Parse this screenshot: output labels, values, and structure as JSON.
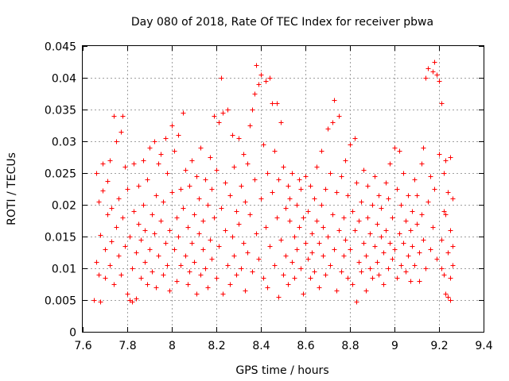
{
  "chart_data": {
    "type": "scatter",
    "title": "Day 080 of 2018, Rate Of TEC Index for receiver pbwa",
    "xlabel": "GPS time / hours",
    "ylabel": "ROTI / TECUs",
    "xlim": [
      7.6,
      9.4
    ],
    "ylim": [
      0,
      0.045
    ],
    "grid": true,
    "marker": "+",
    "color": "#ff0000",
    "x_ticks": [
      7.6,
      7.8,
      8.0,
      8.2,
      8.4,
      8.6,
      8.8,
      9.0,
      9.2,
      9.4
    ],
    "x_tick_labels": [
      "7.6",
      "7.8",
      "8",
      "8.2",
      "8.4",
      "8.6",
      "8.8",
      "9",
      "9.2",
      "9.4"
    ],
    "y_ticks": [
      0,
      0.005,
      0.01,
      0.015,
      0.02,
      0.025,
      0.03,
      0.035,
      0.04,
      0.045
    ],
    "y_tick_labels": [
      "0",
      "0.005",
      "0.01",
      "0.015",
      "0.02",
      "0.025",
      "0.03",
      "0.035",
      "0.04",
      "0.045"
    ],
    "x_range_of_points": [
      7.65,
      9.26
    ],
    "points": [
      [
        7.65,
        0.005
      ],
      [
        7.66,
        0.011
      ],
      [
        7.66,
        0.025
      ],
      [
        7.67,
        0.0205
      ],
      [
        7.67,
        0.009
      ],
      [
        7.68,
        0.0048
      ],
      [
        7.68,
        0.0152
      ],
      [
        7.69,
        0.0222
      ],
      [
        7.69,
        0.0265
      ],
      [
        7.7,
        0.013
      ],
      [
        7.7,
        0.0085
      ],
      [
        7.71,
        0.0185
      ],
      [
        7.71,
        0.0238
      ],
      [
        7.72,
        0.0105
      ],
      [
        7.72,
        0.027
      ],
      [
        7.73,
        0.0142
      ],
      [
        7.73,
        0.0195
      ],
      [
        7.74,
        0.034
      ],
      [
        7.74,
        0.0075
      ],
      [
        7.75,
        0.0165
      ],
      [
        7.75,
        0.03
      ],
      [
        7.76,
        0.012
      ],
      [
        7.76,
        0.021
      ],
      [
        7.77,
        0.0315
      ],
      [
        7.77,
        0.009
      ],
      [
        7.78,
        0.034
      ],
      [
        7.78,
        0.018
      ],
      [
        7.79,
        0.0135
      ],
      [
        7.79,
        0.026
      ],
      [
        7.8,
        0.006
      ],
      [
        7.8,
        0.0225
      ],
      [
        7.81,
        0.005
      ],
      [
        7.81,
        0.015
      ],
      [
        7.82,
        0.0048
      ],
      [
        7.82,
        0.01
      ],
      [
        7.83,
        0.019
      ],
      [
        7.83,
        0.0265
      ],
      [
        7.84,
        0.0125
      ],
      [
        7.84,
        0.0052
      ],
      [
        7.85,
        0.017
      ],
      [
        7.85,
        0.023
      ],
      [
        7.86,
        0.0085
      ],
      [
        7.86,
        0.0145
      ],
      [
        7.87,
        0.027
      ],
      [
        7.87,
        0.02
      ],
      [
        7.88,
        0.011
      ],
      [
        7.88,
        0.016
      ],
      [
        7.89,
        0.024
      ],
      [
        7.89,
        0.0075
      ],
      [
        7.9,
        0.029
      ],
      [
        7.9,
        0.013
      ],
      [
        7.91,
        0.0185
      ],
      [
        7.91,
        0.0095
      ],
      [
        7.92,
        0.03
      ],
      [
        7.92,
        0.0155
      ],
      [
        7.93,
        0.0215
      ],
      [
        7.93,
        0.007
      ],
      [
        7.94,
        0.0265
      ],
      [
        7.94,
        0.012
      ],
      [
        7.95,
        0.0175
      ],
      [
        7.95,
        0.028
      ],
      [
        7.96,
        0.009
      ],
      [
        7.96,
        0.0205
      ],
      [
        7.97,
        0.014
      ],
      [
        7.97,
        0.0305
      ],
      [
        7.98,
        0.0105
      ],
      [
        7.98,
        0.025
      ],
      [
        7.99,
        0.016
      ],
      [
        7.99,
        0.0065
      ],
      [
        8.0,
        0.0325
      ],
      [
        8.0,
        0.022
      ],
      [
        8.01,
        0.013
      ],
      [
        8.01,
        0.0285
      ],
      [
        8.02,
        0.018
      ],
      [
        8.02,
        0.008
      ],
      [
        8.03,
        0.031
      ],
      [
        8.03,
        0.015
      ],
      [
        8.04,
        0.0225
      ],
      [
        8.04,
        0.0105
      ],
      [
        8.05,
        0.0345
      ],
      [
        8.05,
        0.0195
      ],
      [
        8.06,
        0.012
      ],
      [
        8.06,
        0.0255
      ],
      [
        8.07,
        0.0075
      ],
      [
        8.07,
        0.0165
      ],
      [
        8.08,
        0.023
      ],
      [
        8.08,
        0.0095
      ],
      [
        8.09,
        0.014
      ],
      [
        8.09,
        0.027
      ],
      [
        8.1,
        0.0185
      ],
      [
        8.1,
        0.011
      ],
      [
        8.11,
        0.0245
      ],
      [
        8.11,
        0.006
      ],
      [
        8.12,
        0.0155
      ],
      [
        8.12,
        0.021
      ],
      [
        8.13,
        0.009
      ],
      [
        8.13,
        0.029
      ],
      [
        8.14,
        0.013
      ],
      [
        8.14,
        0.0175
      ],
      [
        8.15,
        0.024
      ],
      [
        8.15,
        0.01
      ],
      [
        8.16,
        0.02
      ],
      [
        8.16,
        0.007
      ],
      [
        8.17,
        0.0275
      ],
      [
        8.17,
        0.0145
      ],
      [
        8.18,
        0.0225
      ],
      [
        8.18,
        0.0115
      ],
      [
        8.19,
        0.034
      ],
      [
        8.19,
        0.018
      ],
      [
        8.2,
        0.0085
      ],
      [
        8.2,
        0.0255
      ],
      [
        8.21,
        0.033
      ],
      [
        8.21,
        0.0135
      ],
      [
        8.22,
        0.04
      ],
      [
        8.22,
        0.0195
      ],
      [
        8.23,
        0.006
      ],
      [
        8.23,
        0.0345
      ],
      [
        8.24,
        0.016
      ],
      [
        8.24,
        0.0235
      ],
      [
        8.25,
        0.035
      ],
      [
        8.25,
        0.0105
      ],
      [
        8.26,
        0.0215
      ],
      [
        8.26,
        0.0075
      ],
      [
        8.27,
        0.031
      ],
      [
        8.27,
        0.015
      ],
      [
        8.28,
        0.026
      ],
      [
        8.28,
        0.012
      ],
      [
        8.29,
        0.019
      ],
      [
        8.29,
        0.009
      ],
      [
        8.3,
        0.0305
      ],
      [
        8.3,
        0.017
      ],
      [
        8.31,
        0.023
      ],
      [
        8.31,
        0.01
      ],
      [
        8.32,
        0.028
      ],
      [
        8.32,
        0.014
      ],
      [
        8.33,
        0.0205
      ],
      [
        8.33,
        0.0065
      ],
      [
        8.34,
        0.0265
      ],
      [
        8.34,
        0.0125
      ],
      [
        8.35,
        0.0325
      ],
      [
        8.35,
        0.0185
      ],
      [
        8.36,
        0.035
      ],
      [
        8.36,
        0.0095
      ],
      [
        8.37,
        0.0375
      ],
      [
        8.37,
        0.024
      ],
      [
        8.38,
        0.042
      ],
      [
        8.38,
        0.0155
      ],
      [
        8.39,
        0.039
      ],
      [
        8.39,
        0.0115
      ],
      [
        8.4,
        0.0405
      ],
      [
        8.4,
        0.021
      ],
      [
        8.41,
        0.0085
      ],
      [
        8.41,
        0.0295
      ],
      [
        8.42,
        0.0395
      ],
      [
        8.42,
        0.0165
      ],
      [
        8.43,
        0.025
      ],
      [
        8.43,
        0.007
      ],
      [
        8.44,
        0.04
      ],
      [
        8.44,
        0.0135
      ],
      [
        8.45,
        0.022
      ],
      [
        8.45,
        0.036
      ],
      [
        8.46,
        0.0105
      ],
      [
        8.46,
        0.0285
      ],
      [
        8.47,
        0.018
      ],
      [
        8.47,
        0.036
      ],
      [
        8.48,
        0.0055
      ],
      [
        8.48,
        0.024
      ],
      [
        8.49,
        0.0145
      ],
      [
        8.49,
        0.033
      ],
      [
        8.5,
        0.009
      ],
      [
        8.5,
        0.026
      ],
      [
        8.51,
        0.0195
      ],
      [
        8.51,
        0.012
      ],
      [
        8.52,
        0.023
      ],
      [
        8.52,
        0.0075
      ],
      [
        8.53,
        0.0175
      ],
      [
        8.53,
        0.021
      ],
      [
        8.54,
        0.011
      ],
      [
        8.54,
        0.025
      ],
      [
        8.55,
        0.015
      ],
      [
        8.55,
        0.0085
      ],
      [
        8.56,
        0.02
      ],
      [
        8.56,
        0.013
      ],
      [
        8.57,
        0.024
      ],
      [
        8.57,
        0.0165
      ],
      [
        8.58,
        0.01
      ],
      [
        8.58,
        0.0225
      ],
      [
        8.59,
        0.006
      ],
      [
        8.59,
        0.018
      ],
      [
        8.6,
        0.014
      ],
      [
        8.6,
        0.0245
      ],
      [
        8.61,
        0.0115
      ],
      [
        8.61,
        0.019
      ],
      [
        8.62,
        0.0085
      ],
      [
        8.62,
        0.023
      ],
      [
        8.63,
        0.0155
      ],
      [
        8.63,
        0.0125
      ],
      [
        8.64,
        0.021
      ],
      [
        8.64,
        0.0095
      ],
      [
        8.65,
        0.0175
      ],
      [
        8.65,
        0.026
      ],
      [
        8.66,
        0.014
      ],
      [
        8.66,
        0.007
      ],
      [
        8.67,
        0.02
      ],
      [
        8.67,
        0.0285
      ],
      [
        8.68,
        0.012
      ],
      [
        8.68,
        0.0165
      ],
      [
        8.69,
        0.0225
      ],
      [
        8.69,
        0.009
      ],
      [
        8.7,
        0.032
      ],
      [
        8.7,
        0.015
      ],
      [
        8.71,
        0.025
      ],
      [
        8.71,
        0.0105
      ],
      [
        8.72,
        0.033
      ],
      [
        8.72,
        0.0185
      ],
      [
        8.73,
        0.0365
      ],
      [
        8.73,
        0.013
      ],
      [
        8.74,
        0.0065
      ],
      [
        8.74,
        0.022
      ],
      [
        8.75,
        0.034
      ],
      [
        8.75,
        0.016
      ],
      [
        8.76,
        0.0095
      ],
      [
        8.76,
        0.0245
      ],
      [
        8.77,
        0.018
      ],
      [
        8.77,
        0.012
      ],
      [
        8.78,
        0.027
      ],
      [
        8.78,
        0.0145
      ],
      [
        8.79,
        0.0085
      ],
      [
        8.79,
        0.0215
      ],
      [
        8.8,
        0.0295
      ],
      [
        8.8,
        0.013
      ],
      [
        8.81,
        0.019
      ],
      [
        8.81,
        0.0075
      ],
      [
        8.82,
        0.0305
      ],
      [
        8.82,
        0.016
      ],
      [
        8.83,
        0.0048
      ],
      [
        8.83,
        0.0235
      ],
      [
        8.84,
        0.011
      ],
      [
        8.84,
        0.0175
      ],
      [
        8.85,
        0.0205
      ],
      [
        8.85,
        0.0095
      ],
      [
        8.86,
        0.014
      ],
      [
        8.86,
        0.0255
      ],
      [
        8.87,
        0.012
      ],
      [
        8.87,
        0.0065
      ],
      [
        8.88,
        0.018
      ],
      [
        8.88,
        0.023
      ],
      [
        8.89,
        0.01
      ],
      [
        8.89,
        0.0155
      ],
      [
        8.9,
        0.02
      ],
      [
        8.9,
        0.0085
      ],
      [
        8.91,
        0.0135
      ],
      [
        8.91,
        0.0245
      ],
      [
        8.92,
        0.011
      ],
      [
        8.92,
        0.017
      ],
      [
        8.93,
        0.0215
      ],
      [
        8.93,
        0.009
      ],
      [
        8.94,
        0.015
      ],
      [
        8.94,
        0.0195
      ],
      [
        8.95,
        0.0125
      ],
      [
        8.95,
        0.0075
      ],
      [
        8.96,
        0.0235
      ],
      [
        8.96,
        0.016
      ],
      [
        8.97,
        0.01
      ],
      [
        8.97,
        0.021
      ],
      [
        8.98,
        0.014
      ],
      [
        8.98,
        0.0265
      ],
      [
        8.99,
        0.0115
      ],
      [
        8.99,
        0.018
      ],
      [
        9.0,
        0.029
      ],
      [
        9.0,
        0.013
      ],
      [
        9.01,
        0.0085
      ],
      [
        9.01,
        0.0225
      ],
      [
        9.02,
        0.0155
      ],
      [
        9.02,
        0.0285
      ],
      [
        9.03,
        0.0105
      ],
      [
        9.03,
        0.02
      ],
      [
        9.04,
        0.014
      ],
      [
        9.04,
        0.025
      ],
      [
        9.05,
        0.0095
      ],
      [
        9.05,
        0.0175
      ],
      [
        9.06,
        0.012
      ],
      [
        9.06,
        0.0215
      ],
      [
        9.07,
        0.016
      ],
      [
        9.07,
        0.008
      ],
      [
        9.08,
        0.019
      ],
      [
        9.08,
        0.0135
      ],
      [
        9.09,
        0.024
      ],
      [
        9.09,
        0.0105
      ],
      [
        9.1,
        0.017
      ],
      [
        9.1,
        0.0215
      ],
      [
        9.11,
        0.0125
      ],
      [
        9.11,
        0.008
      ],
      [
        9.12,
        0.0185
      ],
      [
        9.12,
        0.0265
      ],
      [
        9.13,
        0.0145
      ],
      [
        9.13,
        0.029
      ],
      [
        9.14,
        0.01
      ],
      [
        9.14,
        0.04
      ],
      [
        9.15,
        0.0205
      ],
      [
        9.15,
        0.0415
      ],
      [
        9.16,
        0.013
      ],
      [
        9.16,
        0.0245
      ],
      [
        9.17,
        0.041
      ],
      [
        9.17,
        0.0165
      ],
      [
        9.18,
        0.0425
      ],
      [
        9.18,
        0.0225
      ],
      [
        9.19,
        0.0405
      ],
      [
        9.19,
        0.0115
      ],
      [
        9.2,
        0.0395
      ],
      [
        9.2,
        0.028
      ],
      [
        9.21,
        0.0145
      ],
      [
        9.21,
        0.036
      ],
      [
        9.22,
        0.019
      ],
      [
        9.22,
        0.009
      ],
      [
        9.23,
        0.027
      ],
      [
        9.23,
        0.006
      ],
      [
        9.24,
        0.022
      ],
      [
        9.24,
        0.0125
      ],
      [
        9.25,
        0.005
      ],
      [
        9.25,
        0.0275
      ],
      [
        9.25,
        0.016
      ],
      [
        9.26,
        0.0105
      ],
      [
        9.26,
        0.021
      ],
      [
        9.26,
        0.0135
      ],
      [
        9.25,
        0.0085
      ],
      [
        9.24,
        0.0055
      ],
      [
        9.23,
        0.0185
      ],
      [
        9.22,
        0.025
      ],
      [
        9.21,
        0.01
      ]
    ]
  }
}
